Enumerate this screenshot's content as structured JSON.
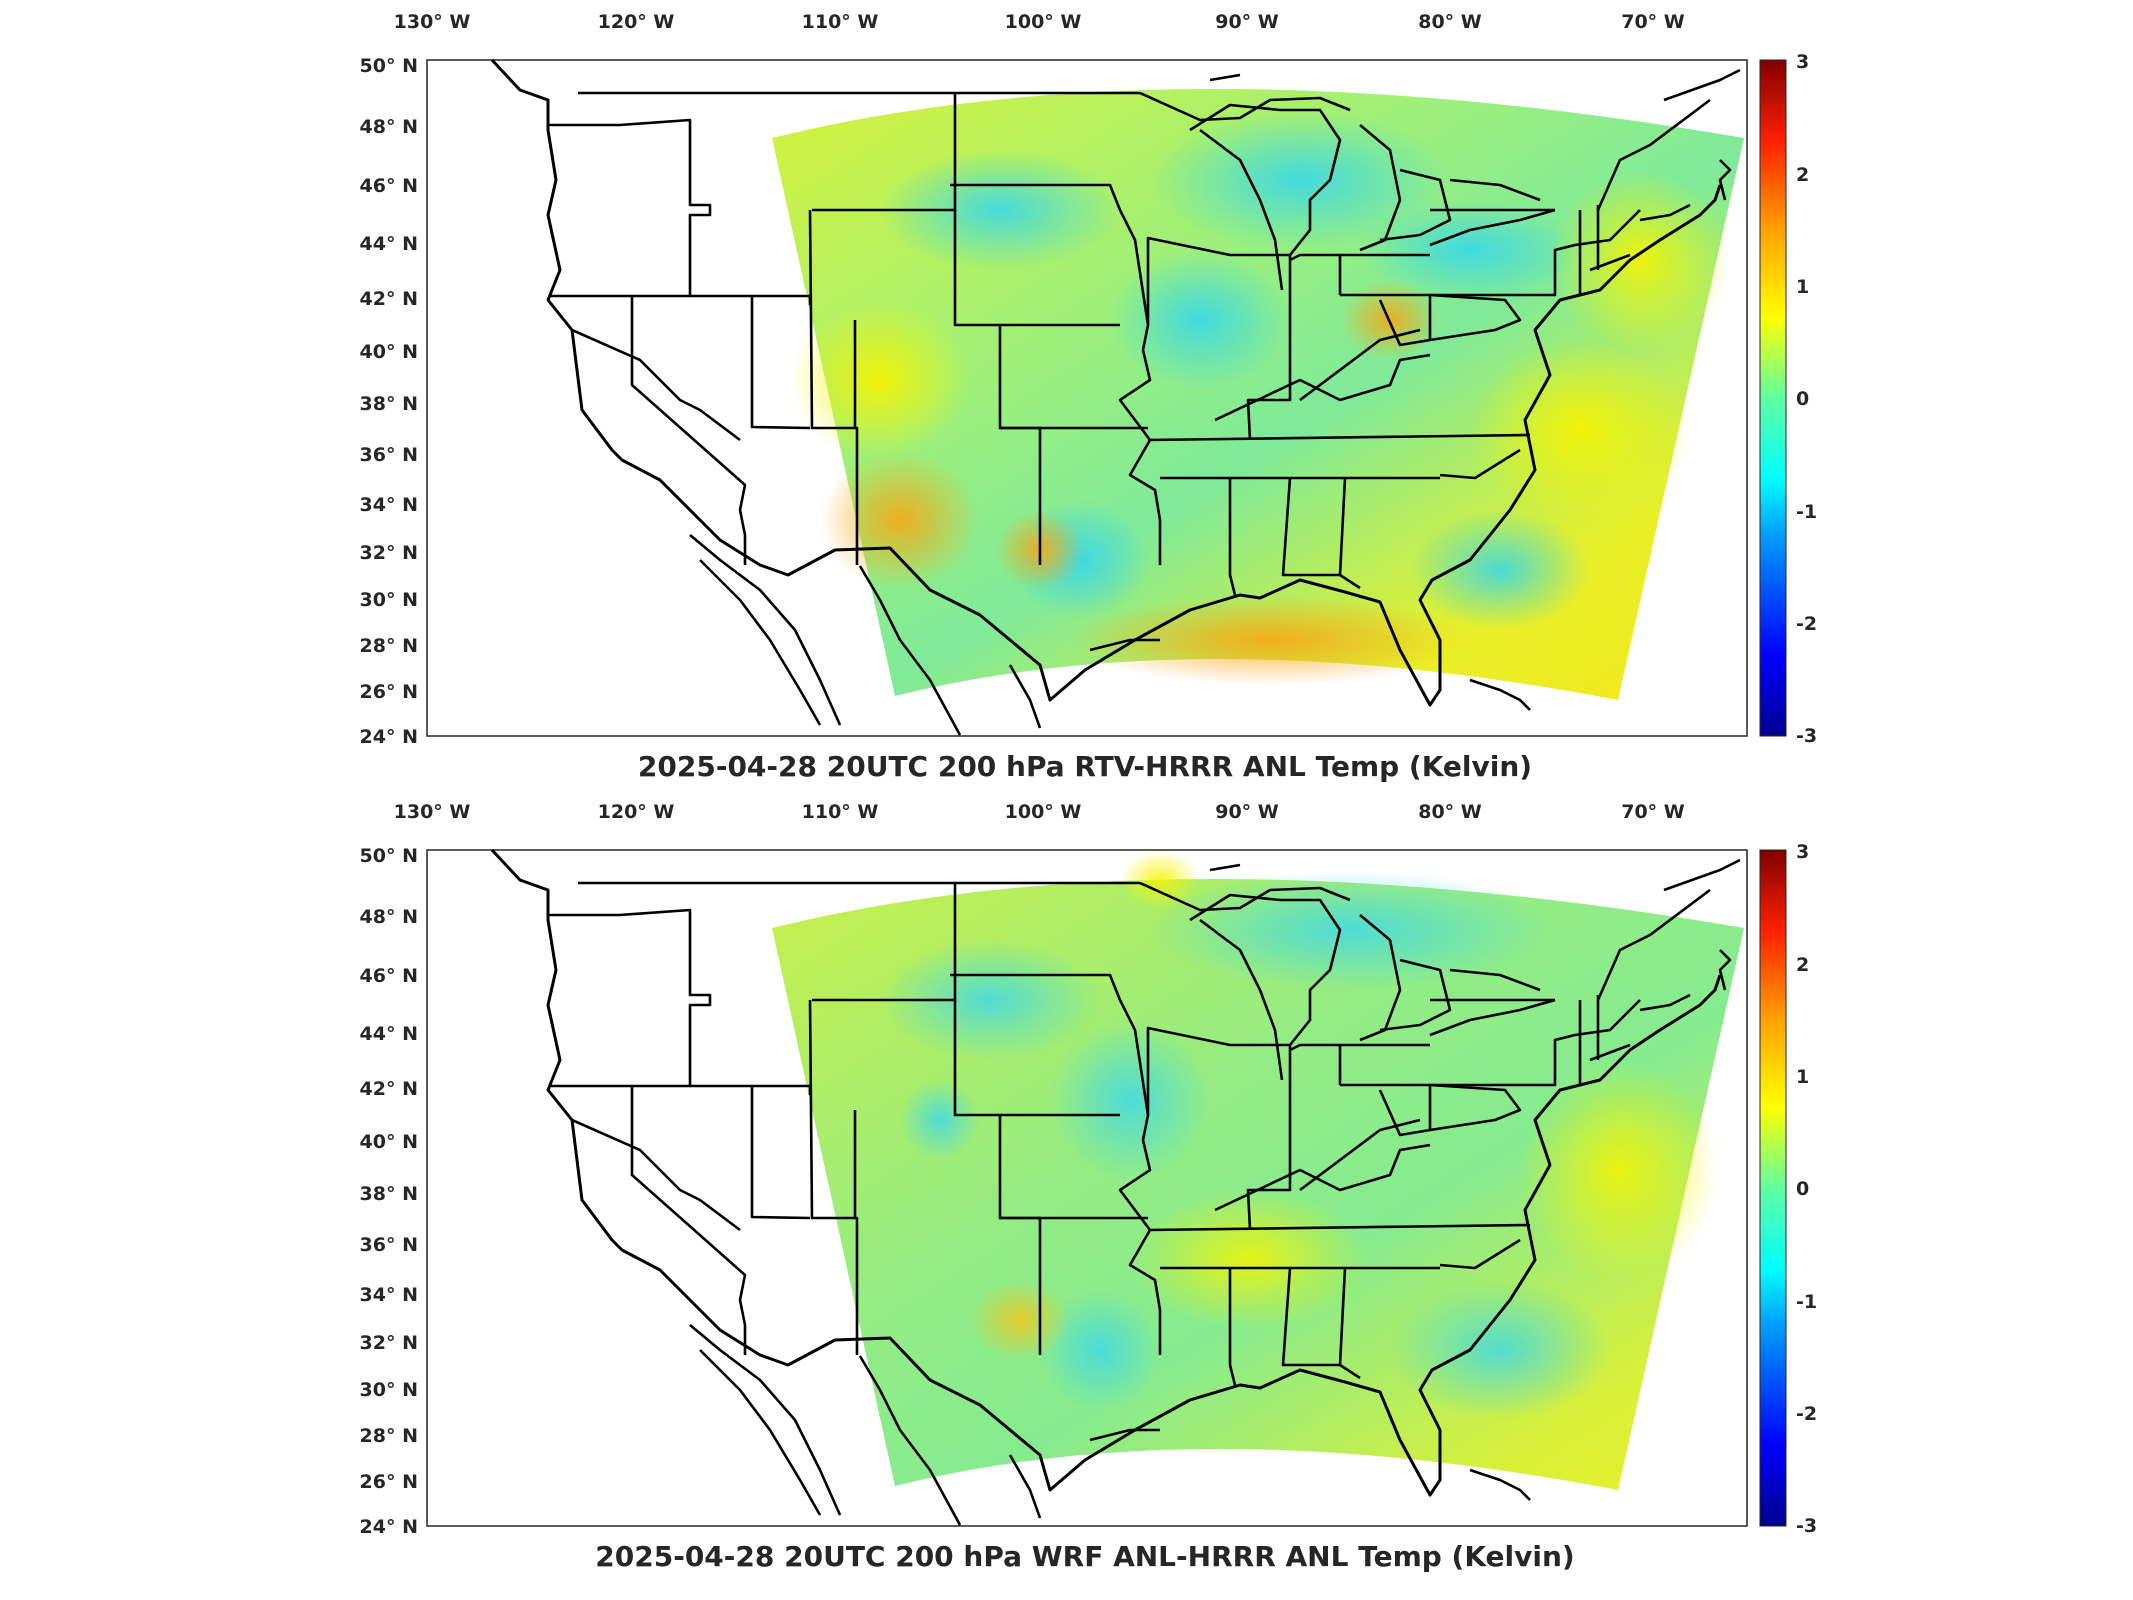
{
  "panels": [
    {
      "title": "2025-04-28 20UTC 200 hPa RTV-HRRR ANL Temp (Kelvin)",
      "field_note": "",
      "lon_ticks": [
        "130° W",
        "120° W",
        "110° W",
        "100° W",
        "90° W",
        "80° W",
        "70° W"
      ],
      "lat_ticks": [
        "50° N",
        "48° N",
        "46° N",
        "44° N",
        "42° N",
        "40° N",
        "38° N",
        "36° N",
        "34° N",
        "32° N",
        "30° N",
        "28° N",
        "26° N",
        "24° N"
      ],
      "colorbar_ticks": [
        "3",
        "2",
        "1",
        "0",
        "-1",
        "-2",
        "-3"
      ]
    },
    {
      "title": "2025-04-28 20UTC 200 hPa WRF ANL-HRRR ANL Temp (Kelvin)",
      "field_note": "",
      "lon_ticks": [
        "130° W",
        "120° W",
        "110° W",
        "100° W",
        "90° W",
        "80° W",
        "70° W"
      ],
      "lat_ticks": [
        "50° N",
        "48° N",
        "46° N",
        "44° N",
        "42° N",
        "40° N",
        "38° N",
        "36° N",
        "34° N",
        "32° N",
        "30° N",
        "28° N",
        "26° N",
        "24° N"
      ],
      "colorbar_ticks": [
        "3",
        "2",
        "1",
        "0",
        "-1",
        "-2",
        "-3"
      ]
    }
  ],
  "colorbar": {
    "min": -3,
    "max": 3,
    "colors": [
      "#00008f",
      "#0000ff",
      "#00a0ff",
      "#00ffff",
      "#60ff9f",
      "#c0ff40",
      "#ffff00",
      "#ffa000",
      "#ff2000",
      "#a00000",
      "#800000"
    ]
  },
  "map_data": {
    "projection": "Lambert conformal",
    "lon_range": [
      -130,
      -65
    ],
    "lat_range": [
      24,
      50
    ],
    "variable": "200 hPa temperature difference (K)",
    "color_scale": "jet"
  }
}
